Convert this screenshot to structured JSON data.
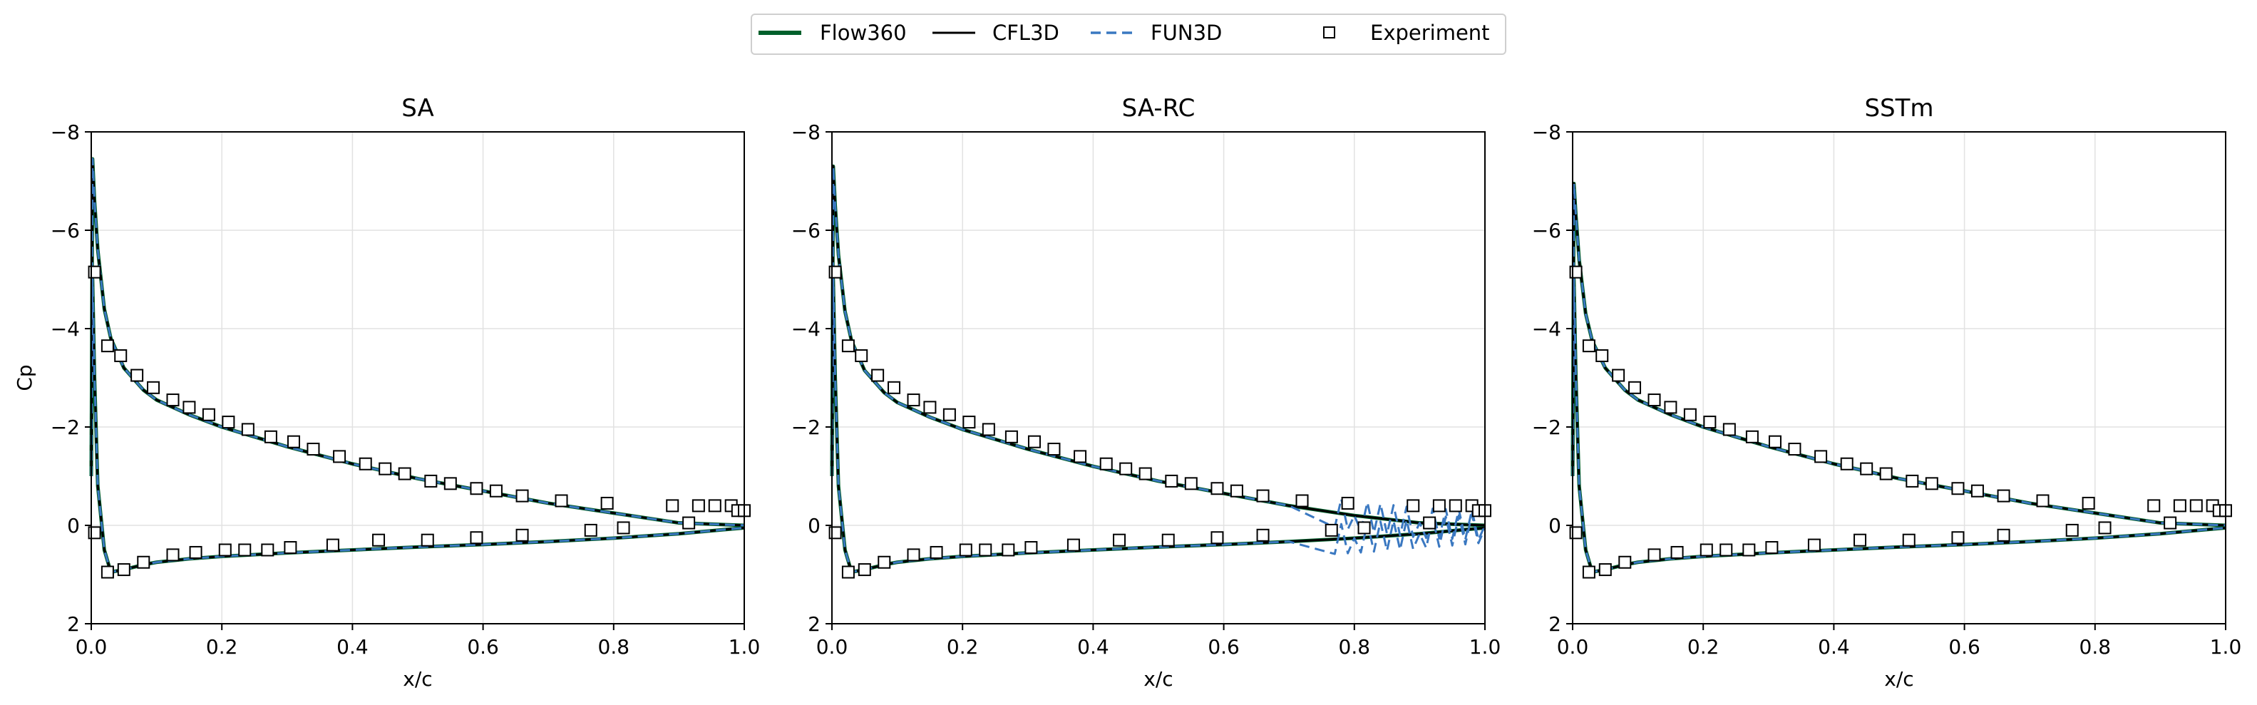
{
  "legend": {
    "location": "upper center, above panels",
    "entries": [
      {
        "label": "Flow360",
        "style": "solid thick line",
        "color": "#00602b"
      },
      {
        "label": "CFL3D",
        "style": "solid line",
        "color": "#000000"
      },
      {
        "label": "FUN3D",
        "style": "dashed line",
        "color": "#3a78c1"
      },
      {
        "label": "Experiment",
        "style": "open square marker",
        "color": "#000000"
      }
    ]
  },
  "colors": {
    "flow360": "#00602b",
    "cfl3d": "#000000",
    "fun3d": "#3a78c1",
    "experiment_edge": "#000000",
    "grid": "#e2e2e2"
  },
  "chart_data": [
    {
      "type": "line",
      "title": "SA",
      "xlabel": "x/c",
      "ylabel": "Cp",
      "xlim": [
        0,
        1.0
      ],
      "ylim": [
        2,
        -8
      ],
      "y_inverted": true,
      "grid": true,
      "xticks": [
        "0.0",
        "0.2",
        "0.4",
        "0.6",
        "0.8",
        "1.0"
      ],
      "yticks": [
        "−8",
        "−6",
        "−4",
        "−2",
        "0",
        "2"
      ],
      "curves": {
        "upper": {
          "x": [
            0,
            0.002,
            0.005,
            0.01,
            0.02,
            0.03,
            0.05,
            0.08,
            0.1,
            0.15,
            0.2,
            0.25,
            0.3,
            0.4,
            0.5,
            0.6,
            0.7,
            0.8,
            0.9,
            1.0
          ],
          "y": [
            -1.0,
            -7.45,
            -6.6,
            -5.6,
            -4.4,
            -3.8,
            -3.2,
            -2.75,
            -2.55,
            -2.25,
            -2.0,
            -1.8,
            -1.6,
            -1.25,
            -0.95,
            -0.7,
            -0.45,
            -0.25,
            -0.05,
            0.0
          ]
        },
        "lower": {
          "x": [
            0,
            0.002,
            0.005,
            0.01,
            0.02,
            0.03,
            0.05,
            0.08,
            0.1,
            0.15,
            0.2,
            0.3,
            0.4,
            0.5,
            0.6,
            0.7,
            0.8,
            0.9,
            1.0
          ],
          "y": [
            -1.0,
            -5.0,
            -3.0,
            -0.8,
            0.5,
            0.95,
            0.9,
            0.8,
            0.75,
            0.68,
            0.63,
            0.56,
            0.5,
            0.44,
            0.39,
            0.33,
            0.26,
            0.17,
            0.05
          ]
        }
      },
      "series": [
        {
          "name": "Flow360",
          "curve": "base",
          "offset": 0
        },
        {
          "name": "CFL3D",
          "curve": "base",
          "offset": 0
        },
        {
          "name": "FUN3D",
          "curve": "base",
          "offset": 0
        }
      ],
      "experiment": {
        "upper": {
          "x": [
            0.005,
            0.025,
            0.045,
            0.07,
            0.095,
            0.125,
            0.15,
            0.18,
            0.21,
            0.24,
            0.275,
            0.31,
            0.34,
            0.38,
            0.42,
            0.45,
            0.48,
            0.52,
            0.55,
            0.59,
            0.62,
            0.66,
            0.72,
            0.79,
            0.89,
            0.93,
            0.955,
            0.98,
            0.99,
            1.0
          ],
          "y": [
            -5.15,
            -3.65,
            -3.45,
            -3.05,
            -2.8,
            -2.55,
            -2.4,
            -2.25,
            -2.1,
            -1.95,
            -1.8,
            -1.7,
            -1.55,
            -1.4,
            -1.25,
            -1.15,
            -1.05,
            -0.9,
            -0.85,
            -0.75,
            -0.7,
            -0.6,
            -0.5,
            -0.45,
            -0.4,
            -0.4,
            -0.4,
            -0.4,
            -0.3,
            -0.3
          ]
        },
        "lower": {
          "x": [
            0.005,
            0.025,
            0.05,
            0.08,
            0.125,
            0.16,
            0.205,
            0.235,
            0.27,
            0.305,
            0.37,
            0.44,
            0.515,
            0.59,
            0.66,
            0.765,
            0.815,
            0.915
          ],
          "y": [
            0.15,
            0.95,
            0.9,
            0.75,
            0.6,
            0.55,
            0.5,
            0.5,
            0.5,
            0.45,
            0.4,
            0.3,
            0.3,
            0.25,
            0.2,
            0.1,
            0.05,
            -0.05
          ]
        }
      }
    },
    {
      "type": "line",
      "title": "SA-RC",
      "xlabel": "x/c",
      "ylabel": "",
      "xlim": [
        0,
        1.0
      ],
      "ylim": [
        2,
        -8
      ],
      "y_inverted": true,
      "grid": true,
      "xticks": [
        "0.0",
        "0.2",
        "0.4",
        "0.6",
        "0.8",
        "1.0"
      ],
      "yticks": [
        "−8",
        "−6",
        "−4",
        "−2",
        "0",
        "2"
      ],
      "curves": {
        "upper": {
          "x": [
            0,
            0.002,
            0.005,
            0.01,
            0.02,
            0.03,
            0.05,
            0.08,
            0.1,
            0.15,
            0.2,
            0.25,
            0.3,
            0.4,
            0.5,
            0.6,
            0.7,
            0.8,
            0.9,
            1.0
          ],
          "y": [
            -1.0,
            -7.3,
            -6.5,
            -5.5,
            -4.35,
            -3.75,
            -3.15,
            -2.7,
            -2.5,
            -2.2,
            -1.95,
            -1.75,
            -1.55,
            -1.2,
            -0.9,
            -0.65,
            -0.4,
            -0.2,
            -0.05,
            0.0
          ]
        },
        "lower": {
          "x": [
            0,
            0.002,
            0.005,
            0.01,
            0.02,
            0.03,
            0.05,
            0.08,
            0.1,
            0.15,
            0.2,
            0.3,
            0.4,
            0.5,
            0.6,
            0.7,
            0.8,
            0.9,
            1.0
          ],
          "y": [
            -1.0,
            -5.0,
            -3.0,
            -0.8,
            0.5,
            0.95,
            0.9,
            0.8,
            0.75,
            0.68,
            0.63,
            0.56,
            0.5,
            0.44,
            0.39,
            0.33,
            0.26,
            0.17,
            0.05
          ]
        }
      },
      "series": [
        {
          "name": "Flow360",
          "curve": "base",
          "offset": 0
        },
        {
          "name": "CFL3D",
          "curve": "base",
          "offset": 0
        },
        {
          "name": "FUN3D",
          "curve": "base",
          "offset": 0,
          "wiggle": {
            "x_from": 0.77,
            "x_to": 1.0,
            "amplitude": 0.3
          }
        }
      ],
      "experiment": {
        "upper": {
          "x": [
            0.005,
            0.025,
            0.045,
            0.07,
            0.095,
            0.125,
            0.15,
            0.18,
            0.21,
            0.24,
            0.275,
            0.31,
            0.34,
            0.38,
            0.42,
            0.45,
            0.48,
            0.52,
            0.55,
            0.59,
            0.62,
            0.66,
            0.72,
            0.79,
            0.89,
            0.93,
            0.955,
            0.98,
            0.99,
            1.0
          ],
          "y": [
            -5.15,
            -3.65,
            -3.45,
            -3.05,
            -2.8,
            -2.55,
            -2.4,
            -2.25,
            -2.1,
            -1.95,
            -1.8,
            -1.7,
            -1.55,
            -1.4,
            -1.25,
            -1.15,
            -1.05,
            -0.9,
            -0.85,
            -0.75,
            -0.7,
            -0.6,
            -0.5,
            -0.45,
            -0.4,
            -0.4,
            -0.4,
            -0.4,
            -0.3,
            -0.3
          ]
        },
        "lower": {
          "x": [
            0.005,
            0.025,
            0.05,
            0.08,
            0.125,
            0.16,
            0.205,
            0.235,
            0.27,
            0.305,
            0.37,
            0.44,
            0.515,
            0.59,
            0.66,
            0.765,
            0.815,
            0.915
          ],
          "y": [
            0.15,
            0.95,
            0.9,
            0.75,
            0.6,
            0.55,
            0.5,
            0.5,
            0.5,
            0.45,
            0.4,
            0.3,
            0.3,
            0.25,
            0.2,
            0.1,
            0.05,
            -0.05
          ]
        }
      }
    },
    {
      "type": "line",
      "title": "SSTm",
      "xlabel": "x/c",
      "ylabel": "",
      "xlim": [
        0,
        1.0
      ],
      "ylim": [
        2,
        -8
      ],
      "y_inverted": true,
      "grid": true,
      "xticks": [
        "0.0",
        "0.2",
        "0.4",
        "0.6",
        "0.8",
        "1.0"
      ],
      "yticks": [
        "−8",
        "−6",
        "−4",
        "−2",
        "0",
        "2"
      ],
      "curves": {
        "upper": {
          "x": [
            0,
            0.002,
            0.005,
            0.01,
            0.02,
            0.03,
            0.05,
            0.08,
            0.1,
            0.15,
            0.2,
            0.25,
            0.3,
            0.4,
            0.5,
            0.6,
            0.7,
            0.8,
            0.9,
            1.0
          ],
          "y": [
            -1.0,
            -6.95,
            -6.3,
            -5.4,
            -4.3,
            -3.75,
            -3.2,
            -2.75,
            -2.55,
            -2.25,
            -2.0,
            -1.8,
            -1.6,
            -1.25,
            -0.95,
            -0.7,
            -0.45,
            -0.25,
            -0.05,
            0.0
          ]
        },
        "lower": {
          "x": [
            0,
            0.002,
            0.005,
            0.01,
            0.02,
            0.03,
            0.05,
            0.08,
            0.1,
            0.15,
            0.2,
            0.3,
            0.4,
            0.5,
            0.6,
            0.7,
            0.8,
            0.9,
            1.0
          ],
          "y": [
            -1.0,
            -5.0,
            -3.0,
            -0.8,
            0.5,
            0.95,
            0.9,
            0.8,
            0.75,
            0.68,
            0.63,
            0.56,
            0.5,
            0.44,
            0.39,
            0.33,
            0.26,
            0.17,
            0.05
          ]
        }
      },
      "series": [
        {
          "name": "Flow360",
          "curve": "base",
          "offset": 0
        },
        {
          "name": "CFL3D",
          "curve": "base",
          "offset": 0
        },
        {
          "name": "FUN3D",
          "curve": "base",
          "offset": 0
        }
      ],
      "experiment": {
        "upper": {
          "x": [
            0.005,
            0.025,
            0.045,
            0.07,
            0.095,
            0.125,
            0.15,
            0.18,
            0.21,
            0.24,
            0.275,
            0.31,
            0.34,
            0.38,
            0.42,
            0.45,
            0.48,
            0.52,
            0.55,
            0.59,
            0.62,
            0.66,
            0.72,
            0.79,
            0.89,
            0.93,
            0.955,
            0.98,
            0.99,
            1.0
          ],
          "y": [
            -5.15,
            -3.65,
            -3.45,
            -3.05,
            -2.8,
            -2.55,
            -2.4,
            -2.25,
            -2.1,
            -1.95,
            -1.8,
            -1.7,
            -1.55,
            -1.4,
            -1.25,
            -1.15,
            -1.05,
            -0.9,
            -0.85,
            -0.75,
            -0.7,
            -0.6,
            -0.5,
            -0.45,
            -0.4,
            -0.4,
            -0.4,
            -0.4,
            -0.3,
            -0.3
          ]
        },
        "lower": {
          "x": [
            0.005,
            0.025,
            0.05,
            0.08,
            0.125,
            0.16,
            0.205,
            0.235,
            0.27,
            0.305,
            0.37,
            0.44,
            0.515,
            0.59,
            0.66,
            0.765,
            0.815,
            0.915
          ],
          "y": [
            0.15,
            0.95,
            0.9,
            0.75,
            0.6,
            0.55,
            0.5,
            0.5,
            0.5,
            0.45,
            0.4,
            0.3,
            0.3,
            0.25,
            0.2,
            0.1,
            0.05,
            -0.05
          ]
        }
      }
    }
  ]
}
